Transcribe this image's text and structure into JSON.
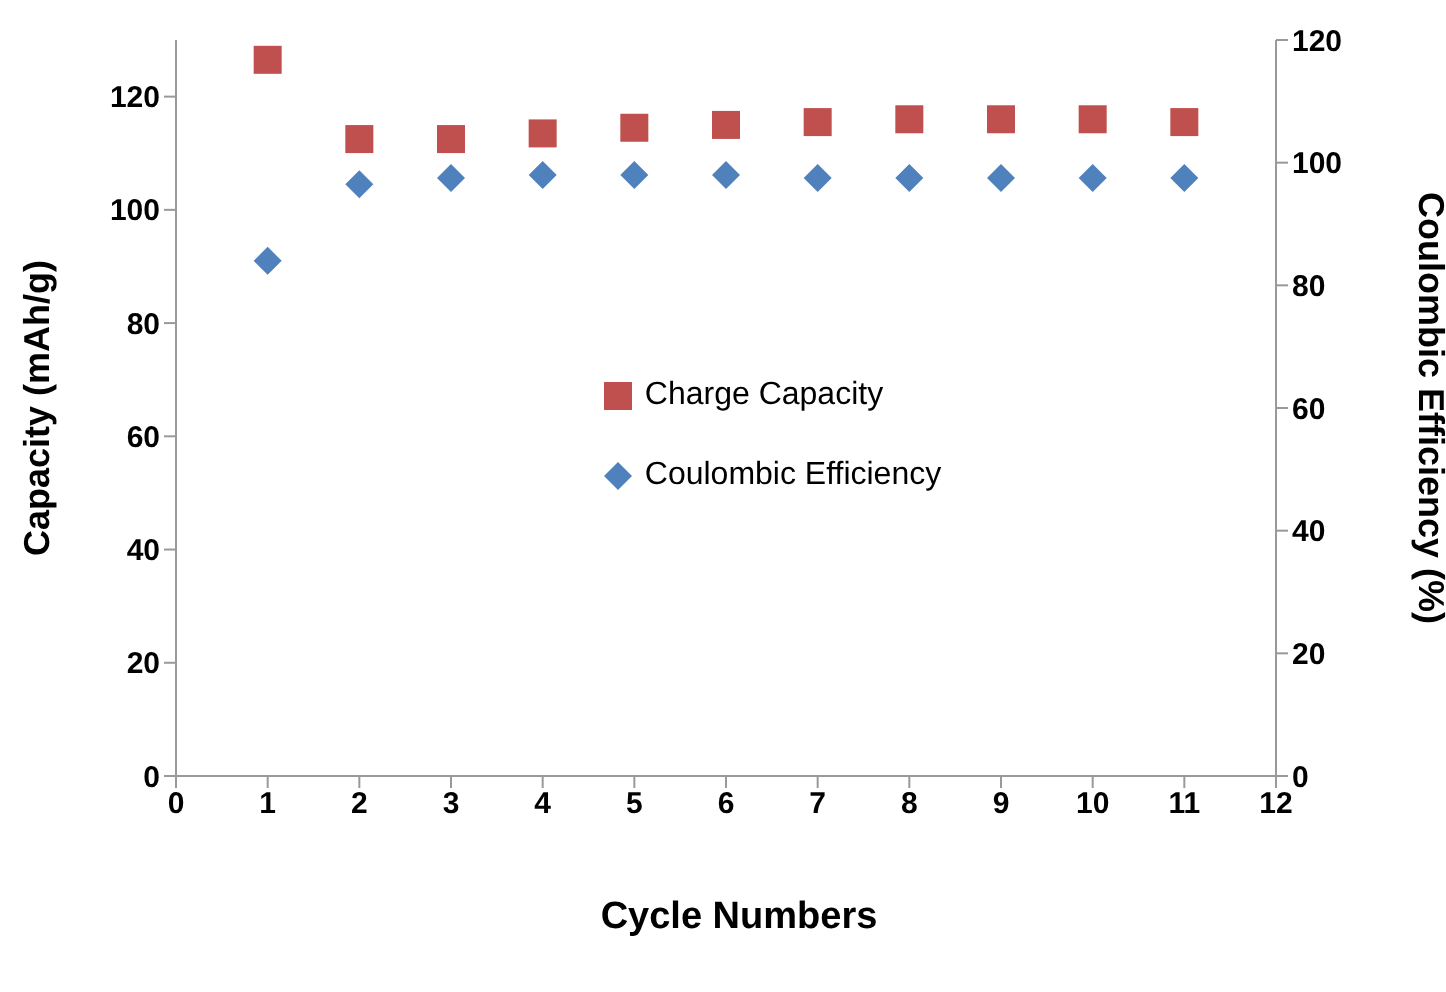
{
  "chart_data": {
    "type": "scatter",
    "xlabel": "Cycle Numbers",
    "ylabel": "Capacity (mAh/g)",
    "y2label": "Coulombic Efficiency (%)",
    "x": [
      1,
      2,
      3,
      4,
      5,
      6,
      7,
      8,
      9,
      10,
      11
    ],
    "series": [
      {
        "name": "Charge Capacity",
        "color": "#c0504d",
        "marker": "square",
        "values": [
          126.5,
          112.5,
          112.5,
          113.5,
          114.5,
          115,
          115.5,
          116,
          116,
          116,
          115.5
        ]
      },
      {
        "name": "Coulombic Efficiency",
        "color": "#4f81bd",
        "marker": "diamond",
        "axis": "y2",
        "values": [
          84,
          96.5,
          97.5,
          98,
          98,
          98,
          97.5,
          97.5,
          97.5,
          97.5,
          97.5
        ]
      }
    ],
    "xlim": [
      0,
      12
    ],
    "xticks": [
      0,
      1,
      2,
      3,
      4,
      5,
      6,
      7,
      8,
      9,
      10,
      11,
      12
    ],
    "ylim": [
      0,
      130
    ],
    "yticks": [
      0,
      20,
      40,
      60,
      80,
      100,
      120
    ],
    "y2lim": [
      0,
      120
    ],
    "y2ticks": [
      0,
      20,
      40,
      60,
      80,
      100,
      120
    ],
    "grid": false,
    "legend": "center"
  }
}
